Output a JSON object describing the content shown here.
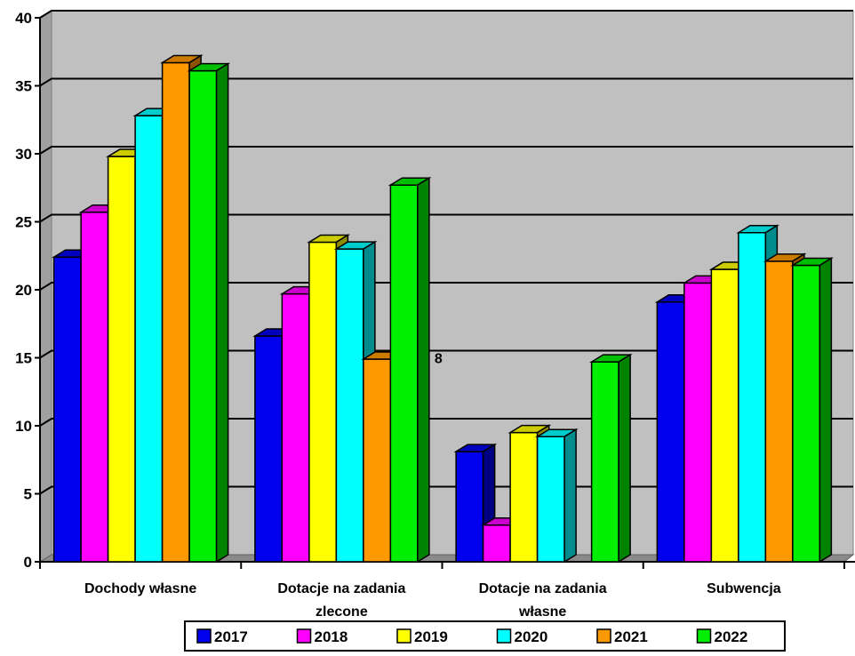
{
  "chart_data": {
    "type": "bar",
    "title": "",
    "xlabel": "",
    "ylabel": "",
    "ylim": [
      0,
      40
    ],
    "yticks": [
      "0",
      "5",
      "10",
      "15",
      "20",
      "25",
      "30",
      "35",
      "40"
    ],
    "grid": true,
    "legend_position": "bottom",
    "categories": [
      "Dochody własne",
      "Dotacje na zadania zlecone",
      "Dotacje na zadania własne",
      "Subwencja"
    ],
    "series": [
      {
        "name": "2017",
        "color": "#0000ee",
        "values": [
          22.4,
          16.6,
          8.1,
          19.1
        ]
      },
      {
        "name": "2018",
        "color": "#ff00ff",
        "values": [
          25.7,
          19.7,
          2.7,
          20.5
        ]
      },
      {
        "name": "2019",
        "color": "#ffff00",
        "values": [
          29.8,
          23.5,
          9.5,
          21.5
        ]
      },
      {
        "name": "2020",
        "color": "#00ffff",
        "values": [
          32.8,
          23.0,
          9.2,
          24.2
        ]
      },
      {
        "name": "2021",
        "color": "#ff9900",
        "values": [
          36.7,
          14.9,
          0,
          22.1
        ]
      },
      {
        "name": "2022",
        "color": "#00ee00",
        "values": [
          36.1,
          27.7,
          14.7,
          21.8
        ]
      }
    ],
    "annotations": [
      {
        "text": "8",
        "category": "Dotacje na zadania zlecone",
        "series": "2022"
      }
    ]
  }
}
